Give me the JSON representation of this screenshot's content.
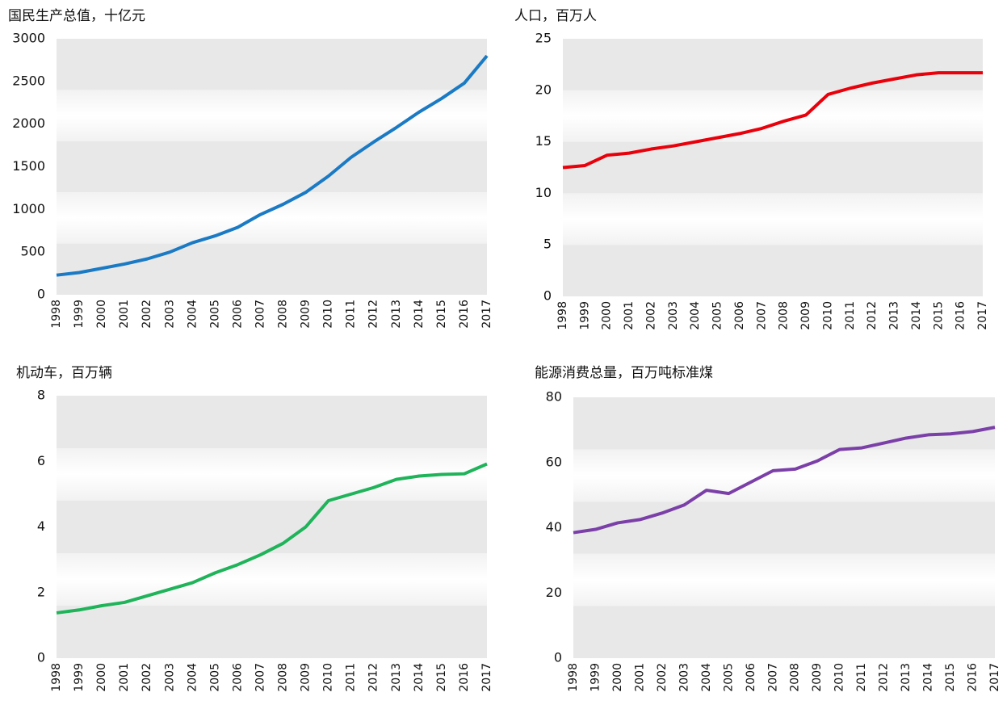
{
  "chart_data": [
    {
      "type": "line",
      "title": "国民生产总值，十亿元",
      "categories": [
        "1998",
        "1999",
        "2000",
        "2001",
        "2002",
        "2003",
        "2004",
        "2005",
        "2006",
        "2007",
        "2008",
        "2009",
        "2010",
        "2011",
        "2012",
        "2013",
        "2014",
        "2015",
        "2016",
        "2017"
      ],
      "series": [
        {
          "color": "#1a7ac4",
          "values": [
            230,
            260,
            310,
            360,
            420,
            500,
            610,
            690,
            790,
            940,
            1060,
            1200,
            1390,
            1610,
            1790,
            1960,
            2140,
            2300,
            2480,
            2800
          ]
        }
      ],
      "ylim": [
        0,
        3000
      ],
      "yticks": [
        0,
        500,
        1000,
        1500,
        2000,
        2500,
        3000
      ]
    },
    {
      "type": "line",
      "title": "人口，百万人",
      "categories": [
        "1998",
        "1999",
        "2000",
        "2001",
        "2002",
        "2003",
        "2004",
        "2005",
        "2006",
        "2007",
        "2008",
        "2009",
        "2010",
        "2011",
        "2012",
        "2013",
        "2014",
        "2015",
        "2016",
        "2017"
      ],
      "series": [
        {
          "color": "#e8000b",
          "values": [
            12.5,
            12.7,
            13.7,
            13.9,
            14.3,
            14.6,
            15.0,
            15.4,
            15.8,
            16.3,
            17.0,
            17.6,
            19.6,
            20.2,
            20.7,
            21.1,
            21.5,
            21.7,
            21.7,
            21.7
          ]
        }
      ],
      "ylim": [
        0,
        25
      ],
      "yticks": [
        0,
        5,
        10,
        15,
        20,
        25
      ]
    },
    {
      "type": "line",
      "title": "机动车，百万辆",
      "categories": [
        "1998",
        "1999",
        "2000",
        "2001",
        "2002",
        "2003",
        "2004",
        "2005",
        "2006",
        "2007",
        "2008",
        "2009",
        "2010",
        "2011",
        "2012",
        "2013",
        "2014",
        "2015",
        "2016",
        "2017"
      ],
      "series": [
        {
          "color": "#1fb35a",
          "values": [
            1.38,
            1.47,
            1.6,
            1.7,
            1.9,
            2.1,
            2.3,
            2.6,
            2.85,
            3.15,
            3.5,
            4.0,
            4.8,
            5.0,
            5.2,
            5.45,
            5.55,
            5.6,
            5.62,
            5.92
          ]
        }
      ],
      "ylim": [
        0,
        8
      ],
      "yticks": [
        0,
        2,
        4,
        6,
        8
      ]
    },
    {
      "type": "line",
      "title": "能源消费总量，百万吨标准煤",
      "categories": [
        "1998",
        "1999",
        "2000",
        "2001",
        "2002",
        "2003",
        "2004",
        "2005",
        "2006",
        "2007",
        "2008",
        "2009",
        "2010",
        "2011",
        "2012",
        "2013",
        "2014",
        "2015",
        "2016",
        "2017"
      ],
      "series": [
        {
          "color": "#7b3fa8",
          "values": [
            38.5,
            39.5,
            41.5,
            42.5,
            44.5,
            47,
            51.5,
            50.5,
            54,
            57.5,
            58,
            60.5,
            64,
            64.5,
            66,
            67.5,
            68.5,
            68.8,
            69.5,
            70.8
          ]
        }
      ],
      "ylim": [
        0,
        80
      ],
      "yticks": [
        0,
        20,
        40,
        60,
        80
      ]
    }
  ]
}
